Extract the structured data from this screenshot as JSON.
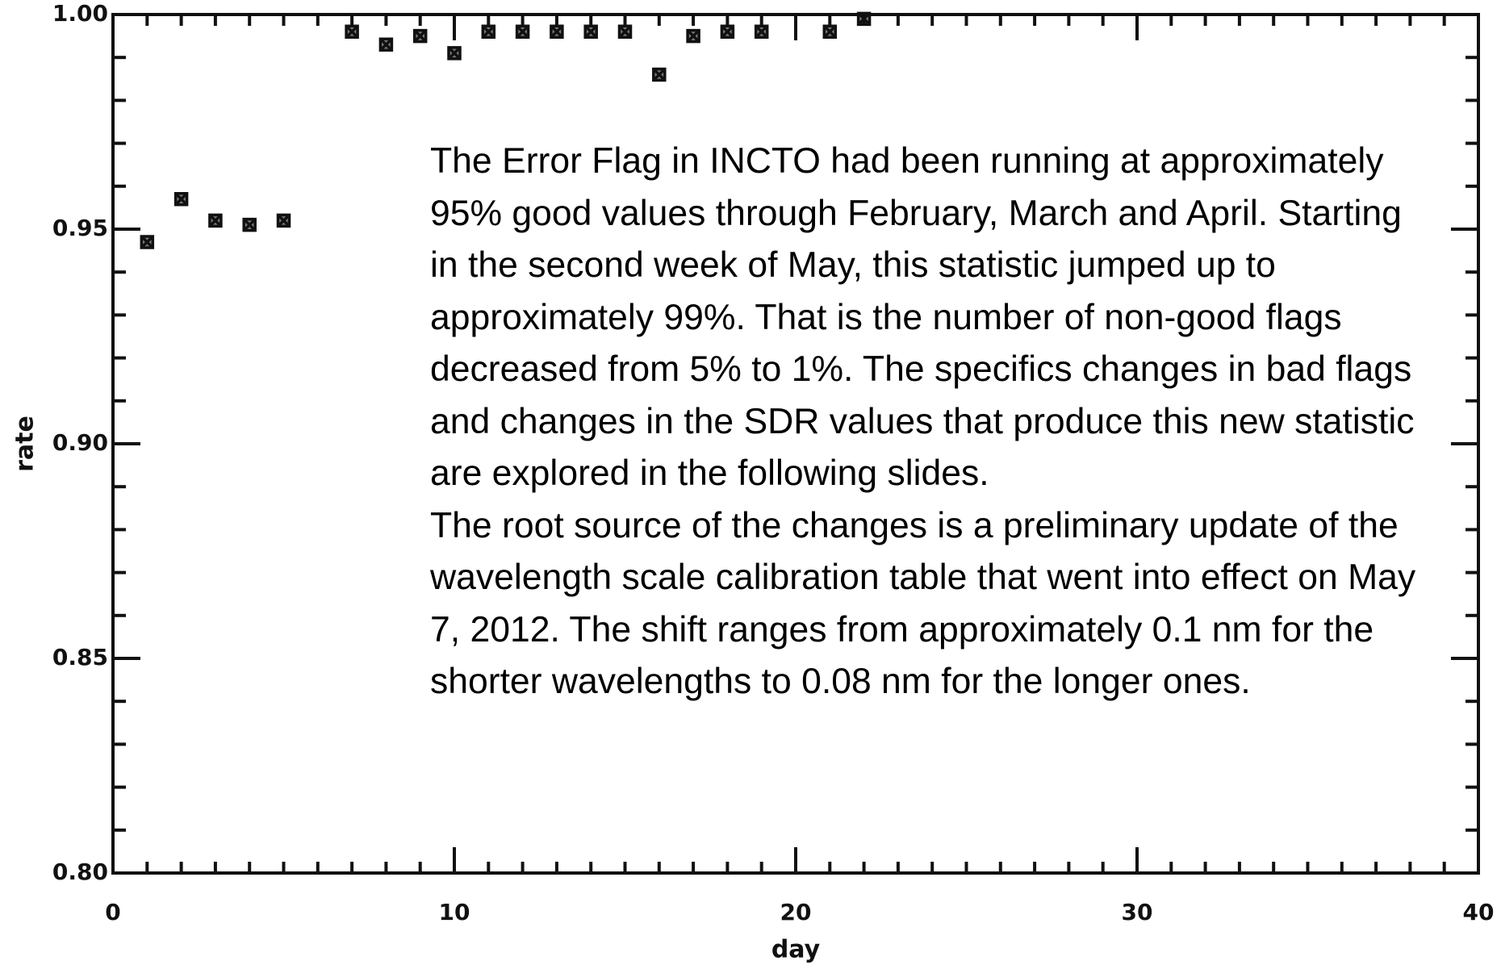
{
  "chart_data": {
    "type": "scatter",
    "x_label": "day",
    "y_label": "rate",
    "x": [
      1,
      2,
      3,
      4,
      5,
      7,
      8,
      9,
      10,
      11,
      12,
      13,
      14,
      15,
      16,
      17,
      18,
      19,
      21,
      22
    ],
    "values": [
      0.947,
      0.957,
      0.952,
      0.951,
      0.952,
      0.996,
      0.993,
      0.995,
      0.991,
      0.996,
      0.996,
      0.996,
      0.996,
      0.996,
      0.986,
      0.995,
      0.996,
      0.996,
      0.996,
      0.999
    ],
    "color": "#111111",
    "xlim": [
      0,
      40
    ],
    "xticks": [
      0,
      10,
      20,
      30,
      40
    ],
    "ylim": [
      0.8,
      1.0
    ],
    "yticks": [
      {
        "value": 0.8,
        "label": "0.80"
      },
      0.85,
      {
        "value": 0.9,
        "label": "0.90"
      },
      0.95,
      {
        "value": 1.0,
        "label": "1.00"
      }
    ],
    "annotations": [
      "The Error Flag in INCTO had been running at approximately 95% good values through February, March and April. Starting in the second week of May, this statistic jumped up to approximately 99%. That is the number of non-good flags decreased from  5% to 1%. The specifics changes in bad flags and changes in the SDR values that produce this new statistic are explored in the following slides.",
      "The root source of the changes is a preliminary update of the wavelength scale calibration table that went into effect on May 7, 2012. The shift ranges from approximately 0.1 nm for the shorter wavelengths to 0.08 nm for the longer ones."
    ]
  }
}
